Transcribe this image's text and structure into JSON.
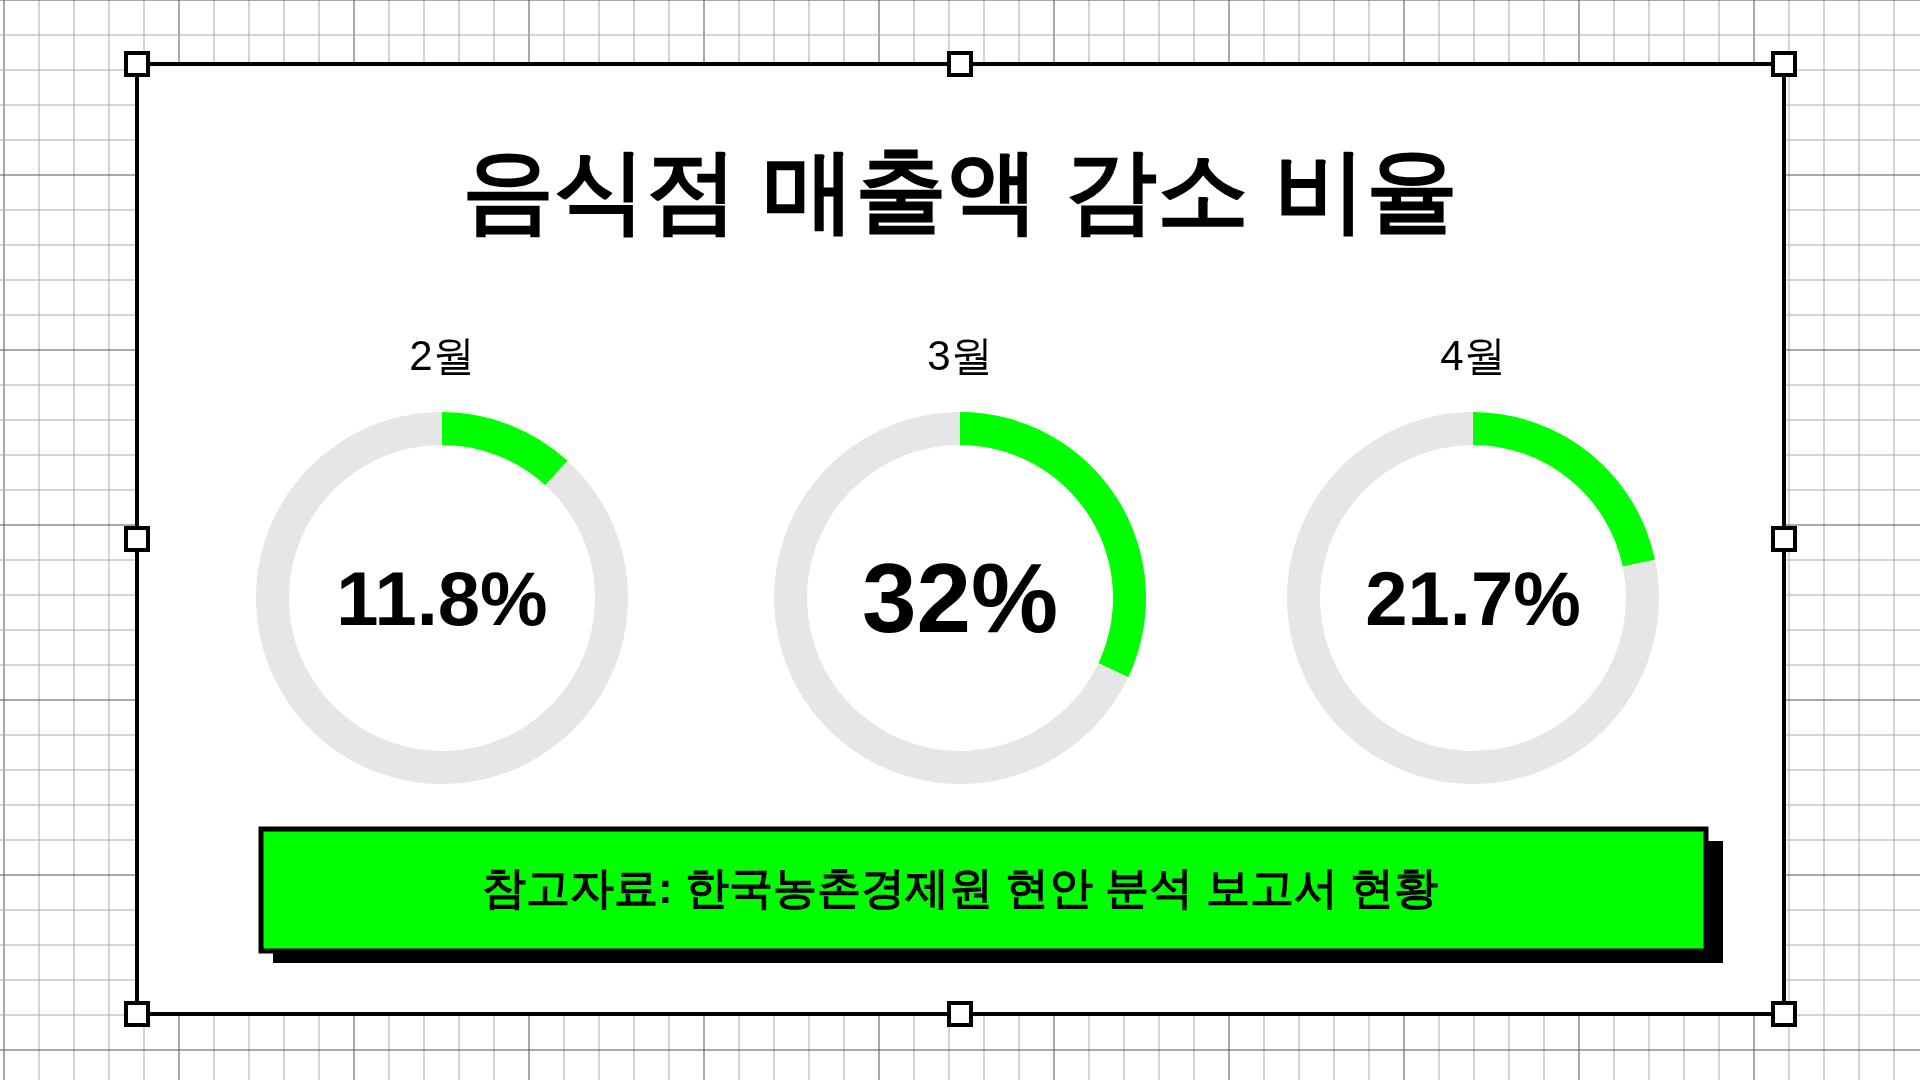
{
  "chart_data": [
    {
      "type": "other",
      "title": "음식점 매출액 감소 비율",
      "annotations": [
        "참고자료: 한국농촌경제원 현안 분석 보고서 현황"
      ]
    },
    {
      "type": "donut",
      "title": "2월",
      "categories": [
        null,
        null
      ],
      "values": [
        11.8,
        88.2
      ],
      "colors": [
        "#00ff00",
        "#e6e6e6"
      ],
      "annotations": [
        "11.8%"
      ]
    },
    {
      "type": "donut",
      "title": "3월",
      "categories": [
        null,
        null
      ],
      "values": [
        32,
        68
      ],
      "colors": [
        "#00ff00",
        "#e6e6e6"
      ],
      "annotations": [
        "32%"
      ]
    },
    {
      "type": "donut",
      "title": "4월",
      "categories": [
        null,
        null
      ],
      "values": [
        21.7,
        78.3
      ],
      "colors": [
        "#00ff00",
        "#e6e6e6"
      ],
      "annotations": [
        "21.7%"
      ]
    }
  ]
}
